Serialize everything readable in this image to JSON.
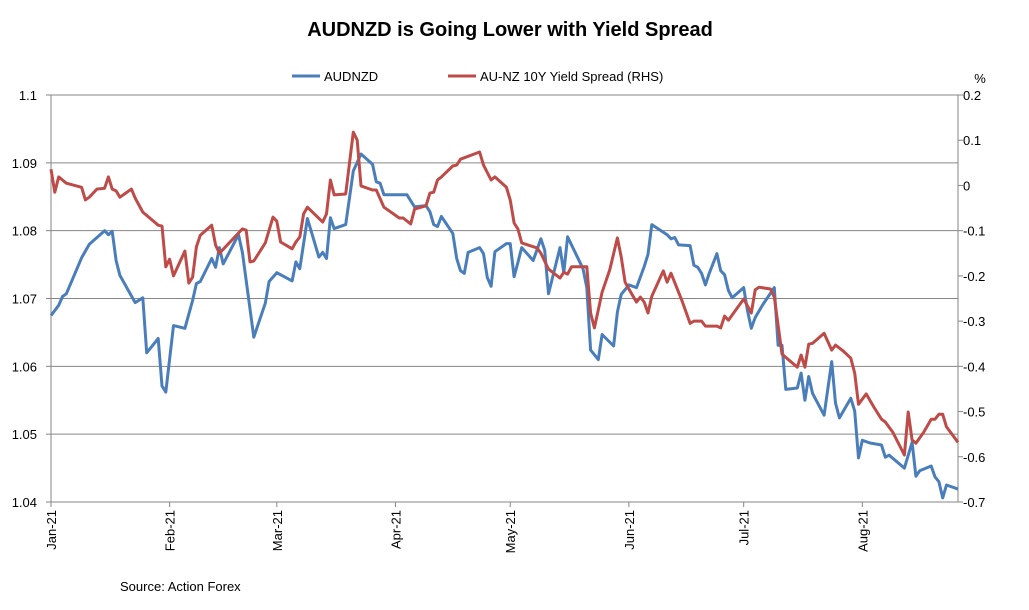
{
  "chart_data": {
    "type": "line",
    "title": "AUDNZD is Going Lower with Yield Spread",
    "source": "Source: Action Forex",
    "x_range": [
      "2021-01-01",
      "2021-08-26"
    ],
    "x_ticks": [
      {
        "date": "2021-01-01",
        "label": "Jan-21"
      },
      {
        "date": "2021-02-01",
        "label": "Feb-21"
      },
      {
        "date": "2021-03-01",
        "label": "Mar-21"
      },
      {
        "date": "2021-04-01",
        "label": "Apr-21"
      },
      {
        "date": "2021-05-01",
        "label": "May-21"
      },
      {
        "date": "2021-06-01",
        "label": "Jun-21"
      },
      {
        "date": "2021-07-01",
        "label": "Jul-21"
      },
      {
        "date": "2021-08-01",
        "label": "Aug-21"
      }
    ],
    "y_left": {
      "min": 1.04,
      "max": 1.1,
      "ticks": [
        "1.04",
        "1.05",
        "1.06",
        "1.07",
        "1.08",
        "1.09",
        "1.1"
      ]
    },
    "y_right": {
      "label": "%",
      "min": -0.7,
      "max": 0.2,
      "ticks": [
        "-0.7",
        "-0.6",
        "-0.5",
        "-0.4",
        "-0.3",
        "-0.2",
        "-0.1",
        "0",
        "0.1",
        "0.2"
      ]
    },
    "grid": "horizontal",
    "legend_position": "top",
    "series": [
      {
        "name": "AUDNZD",
        "axis": "left",
        "color": "#4a7ebb",
        "points": [
          [
            "01-01",
            1.0675
          ],
          [
            "01-03",
            1.069
          ],
          [
            "01-04",
            1.0703
          ],
          [
            "01-05",
            1.0707
          ],
          [
            "01-09",
            1.076
          ],
          [
            "01-11",
            1.078
          ],
          [
            "01-15",
            1.08
          ],
          [
            "01-16",
            1.0794
          ],
          [
            "01-17",
            1.0799
          ],
          [
            "01-18",
            1.0756
          ],
          [
            "01-19",
            1.0734
          ],
          [
            "01-23",
            1.0694
          ],
          [
            "01-25",
            1.0701
          ],
          [
            "01-26",
            1.062
          ],
          [
            "01-29",
            1.0641
          ],
          [
            "01-30",
            1.0571
          ],
          [
            "01-31",
            1.0562
          ],
          [
            "02-02",
            1.066
          ],
          [
            "02-05",
            1.0656
          ],
          [
            "02-07",
            1.0697
          ],
          [
            "02-08",
            1.0722
          ],
          [
            "02-09",
            1.0725
          ],
          [
            "02-12",
            1.0759
          ],
          [
            "02-13",
            1.0746
          ],
          [
            "02-14",
            1.0775
          ],
          [
            "02-15",
            1.0751
          ],
          [
            "02-19",
            1.0794
          ],
          [
            "02-20",
            1.0768
          ],
          [
            "02-23",
            1.0643
          ],
          [
            "02-26",
            1.0693
          ],
          [
            "02-27",
            1.0725
          ],
          [
            "03-01",
            1.0738
          ],
          [
            "03-05",
            1.0726
          ],
          [
            "03-06",
            1.0754
          ],
          [
            "03-07",
            1.0744
          ],
          [
            "03-09",
            1.0818
          ],
          [
            "03-12",
            1.0761
          ],
          [
            "03-13",
            1.0768
          ],
          [
            "03-14",
            1.0759
          ],
          [
            "03-15",
            1.0819
          ],
          [
            "03-16",
            1.0803
          ],
          [
            "03-19",
            1.0809
          ],
          [
            "03-21",
            1.0888
          ],
          [
            "03-23",
            1.0913
          ],
          [
            "03-26",
            1.0898
          ],
          [
            "03-27",
            1.0872
          ],
          [
            "03-28",
            1.087
          ],
          [
            "03-29",
            1.0853
          ],
          [
            "04-04",
            1.0853
          ],
          [
            "04-06",
            1.0835
          ],
          [
            "04-09",
            1.0837
          ],
          [
            "04-10",
            1.0828
          ],
          [
            "04-11",
            1.0809
          ],
          [
            "04-12",
            1.0806
          ],
          [
            "04-13",
            1.0821
          ],
          [
            "04-16",
            1.0796
          ],
          [
            "04-17",
            1.0759
          ],
          [
            "04-18",
            1.0741
          ],
          [
            "04-19",
            1.0737
          ],
          [
            "04-20",
            1.0768
          ],
          [
            "04-23",
            1.0775
          ],
          [
            "04-24",
            1.0766
          ],
          [
            "04-25",
            1.0731
          ],
          [
            "04-26",
            1.0718
          ],
          [
            "04-27",
            1.0769
          ],
          [
            "04-30",
            1.0781
          ],
          [
            "05-01",
            1.0781
          ],
          [
            "05-02",
            1.0732
          ],
          [
            "05-03",
            1.0753
          ],
          [
            "05-04",
            1.0775
          ],
          [
            "05-07",
            1.0756
          ],
          [
            "05-09",
            1.0788
          ],
          [
            "05-10",
            1.0771
          ],
          [
            "05-11",
            1.0707
          ],
          [
            "05-14",
            1.0775
          ],
          [
            "05-15",
            1.0738
          ],
          [
            "05-16",
            1.0791
          ],
          [
            "05-20",
            1.0744
          ],
          [
            "05-21",
            1.0716
          ],
          [
            "05-22",
            1.0624
          ],
          [
            "05-24",
            1.061
          ],
          [
            "05-25",
            1.0647
          ],
          [
            "05-28",
            1.063
          ],
          [
            "05-29",
            1.068
          ],
          [
            "05-30",
            1.0706
          ],
          [
            "06-01",
            1.072
          ],
          [
            "06-03",
            1.0716
          ],
          [
            "06-05",
            1.0747
          ],
          [
            "06-06",
            1.0765
          ],
          [
            "06-07",
            1.0809
          ],
          [
            "06-11",
            1.0794
          ],
          [
            "06-12",
            1.0788
          ],
          [
            "06-13",
            1.079
          ],
          [
            "06-14",
            1.0779
          ],
          [
            "06-17",
            1.0778
          ],
          [
            "06-18",
            1.0749
          ],
          [
            "06-19",
            1.0746
          ],
          [
            "06-20",
            1.0737
          ],
          [
            "06-21",
            1.072
          ],
          [
            "06-22",
            1.0737
          ],
          [
            "06-24",
            1.0766
          ],
          [
            "06-25",
            1.0741
          ],
          [
            "06-26",
            1.0735
          ],
          [
            "06-27",
            1.0712
          ],
          [
            "06-28",
            1.0701
          ],
          [
            "07-01",
            1.0716
          ],
          [
            "07-02",
            1.0682
          ],
          [
            "07-03",
            1.0656
          ],
          [
            "07-04",
            1.0672
          ],
          [
            "07-06",
            1.0691
          ],
          [
            "07-09",
            1.0716
          ],
          [
            "07-10",
            1.0631
          ],
          [
            "07-11",
            1.0631
          ],
          [
            "07-12",
            1.0566
          ],
          [
            "07-15",
            1.0568
          ],
          [
            "07-16",
            1.059
          ],
          [
            "07-17",
            1.055
          ],
          [
            "07-18",
            1.0585
          ],
          [
            "07-19",
            1.056
          ],
          [
            "07-22",
            1.0528
          ],
          [
            "07-24",
            1.0607
          ],
          [
            "07-25",
            1.0546
          ],
          [
            "07-26",
            1.0524
          ],
          [
            "07-29",
            1.0553
          ],
          [
            "07-30",
            1.0534
          ],
          [
            "07-31",
            1.0465
          ],
          [
            "08-01",
            1.0491
          ],
          [
            "08-03",
            1.0487
          ],
          [
            "08-06",
            1.0484
          ],
          [
            "08-07",
            1.0466
          ],
          [
            "08-08",
            1.0469
          ],
          [
            "08-12",
            1.045
          ],
          [
            "08-14",
            1.0488
          ],
          [
            "08-15",
            1.0438
          ],
          [
            "08-16",
            1.0446
          ],
          [
            "08-19",
            1.0453
          ],
          [
            "08-20",
            1.0437
          ],
          [
            "08-21",
            1.043
          ],
          [
            "08-22",
            1.0406
          ],
          [
            "08-23",
            1.0425
          ],
          [
            "08-26",
            1.0419
          ]
        ]
      },
      {
        "name": "AU-NZ 10Y Yield Spread (RHS)",
        "axis": "right",
        "color": "#be4b48",
        "points": [
          [
            "01-01",
            0.036
          ],
          [
            "01-02",
            -0.015
          ],
          [
            "01-03",
            0.019
          ],
          [
            "01-05",
            0.005
          ],
          [
            "01-09",
            -0.004
          ],
          [
            "01-10",
            -0.032
          ],
          [
            "01-11",
            -0.026
          ],
          [
            "01-13",
            -0.008
          ],
          [
            "01-15",
            -0.006
          ],
          [
            "01-16",
            0.019
          ],
          [
            "01-17",
            -0.008
          ],
          [
            "01-18",
            -0.012
          ],
          [
            "01-19",
            -0.026
          ],
          [
            "01-22",
            -0.008
          ],
          [
            "01-23",
            -0.028
          ],
          [
            "01-25",
            -0.059
          ],
          [
            "01-29",
            -0.088
          ],
          [
            "01-30",
            -0.09
          ],
          [
            "01-31",
            -0.18
          ],
          [
            "02-01",
            -0.163
          ],
          [
            "02-02",
            -0.2
          ],
          [
            "02-05",
            -0.145
          ],
          [
            "02-06",
            -0.216
          ],
          [
            "02-07",
            -0.203
          ],
          [
            "02-08",
            -0.136
          ],
          [
            "02-09",
            -0.11
          ],
          [
            "02-12",
            -0.088
          ],
          [
            "02-13",
            -0.132
          ],
          [
            "02-14",
            -0.15
          ],
          [
            "02-20",
            -0.096
          ],
          [
            "02-21",
            -0.099
          ],
          [
            "02-22",
            -0.169
          ],
          [
            "02-23",
            -0.167
          ],
          [
            "02-26",
            -0.127
          ],
          [
            "02-28",
            -0.07
          ],
          [
            "03-01",
            -0.079
          ],
          [
            "03-02",
            -0.125
          ],
          [
            "03-05",
            -0.14
          ],
          [
            "03-06",
            -0.125
          ],
          [
            "03-07",
            -0.114
          ],
          [
            "03-08",
            -0.063
          ],
          [
            "03-09",
            -0.048
          ],
          [
            "03-13",
            -0.081
          ],
          [
            "03-14",
            -0.063
          ],
          [
            "03-15",
            0.012
          ],
          [
            "03-16",
            -0.021
          ],
          [
            "03-19",
            -0.019
          ],
          [
            "03-21",
            0.118
          ],
          [
            "03-22",
            0.1
          ],
          [
            "03-23",
            -0.001
          ],
          [
            "03-26",
            -0.01
          ],
          [
            "03-27",
            -0.01
          ],
          [
            "03-29",
            -0.048
          ],
          [
            "04-02",
            -0.072
          ],
          [
            "04-03",
            -0.072
          ],
          [
            "04-05",
            -0.085
          ],
          [
            "04-06",
            -0.052
          ],
          [
            "04-09",
            -0.045
          ],
          [
            "04-10",
            -0.017
          ],
          [
            "04-11",
            -0.015
          ],
          [
            "04-12",
            0.012
          ],
          [
            "04-13",
            0.019
          ],
          [
            "04-16",
            0.043
          ],
          [
            "04-17",
            0.045
          ],
          [
            "04-18",
            0.058
          ],
          [
            "04-23",
            0.074
          ],
          [
            "04-24",
            0.045
          ],
          [
            "04-26",
            0.012
          ],
          [
            "04-27",
            0.019
          ],
          [
            "04-30",
            -0.004
          ],
          [
            "05-01",
            -0.032
          ],
          [
            "05-02",
            -0.083
          ],
          [
            "05-03",
            -0.096
          ],
          [
            "05-04",
            -0.127
          ],
          [
            "05-08",
            -0.138
          ],
          [
            "05-09",
            -0.15
          ],
          [
            "05-11",
            -0.185
          ],
          [
            "05-14",
            -0.205
          ],
          [
            "05-15",
            -0.192
          ],
          [
            "05-16",
            -0.196
          ],
          [
            "05-17",
            -0.18
          ],
          [
            "05-21",
            -0.18
          ],
          [
            "05-22",
            -0.282
          ],
          [
            "05-23",
            -0.315
          ],
          [
            "05-25",
            -0.236
          ],
          [
            "05-27",
            -0.187
          ],
          [
            "05-29",
            -0.116
          ],
          [
            "05-30",
            -0.158
          ],
          [
            "05-31",
            -0.214
          ],
          [
            "06-01",
            -0.229
          ],
          [
            "06-03",
            -0.258
          ],
          [
            "06-04",
            -0.247
          ],
          [
            "06-05",
            -0.258
          ],
          [
            "06-06",
            -0.282
          ],
          [
            "06-07",
            -0.245
          ],
          [
            "06-10",
            -0.189
          ],
          [
            "06-11",
            -0.214
          ],
          [
            "06-12",
            -0.194
          ],
          [
            "06-15",
            -0.258
          ],
          [
            "06-17",
            -0.305
          ],
          [
            "06-18",
            -0.3
          ],
          [
            "06-20",
            -0.3
          ],
          [
            "06-21",
            -0.311
          ],
          [
            "06-24",
            -0.311
          ],
          [
            "06-25",
            -0.315
          ],
          [
            "06-26",
            -0.289
          ],
          [
            "06-27",
            -0.298
          ],
          [
            "07-01",
            -0.251
          ],
          [
            "07-03",
            -0.282
          ],
          [
            "07-04",
            -0.231
          ],
          [
            "07-05",
            -0.225
          ],
          [
            "07-08",
            -0.229
          ],
          [
            "07-09",
            -0.247
          ],
          [
            "07-11",
            -0.373
          ],
          [
            "07-15",
            -0.402
          ],
          [
            "07-16",
            -0.375
          ],
          [
            "07-17",
            -0.402
          ],
          [
            "07-18",
            -0.351
          ],
          [
            "07-19",
            -0.349
          ],
          [
            "07-22",
            -0.327
          ],
          [
            "07-24",
            -0.364
          ],
          [
            "07-25",
            -0.353
          ],
          [
            "07-27",
            -0.366
          ],
          [
            "07-29",
            -0.382
          ],
          [
            "07-30",
            -0.415
          ],
          [
            "07-31",
            -0.484
          ],
          [
            "08-02",
            -0.461
          ],
          [
            "08-04",
            -0.49
          ],
          [
            "08-06",
            -0.517
          ],
          [
            "08-07",
            -0.523
          ],
          [
            "08-09",
            -0.546
          ],
          [
            "08-12",
            -0.596
          ],
          [
            "08-13",
            -0.501
          ],
          [
            "08-14",
            -0.563
          ],
          [
            "08-15",
            -0.57
          ],
          [
            "08-17",
            -0.546
          ],
          [
            "08-19",
            -0.517
          ],
          [
            "08-20",
            -0.517
          ],
          [
            "08-21",
            -0.506
          ],
          [
            "08-22",
            -0.506
          ],
          [
            "08-23",
            -0.534
          ],
          [
            "08-26",
            -0.568
          ]
        ]
      }
    ]
  }
}
